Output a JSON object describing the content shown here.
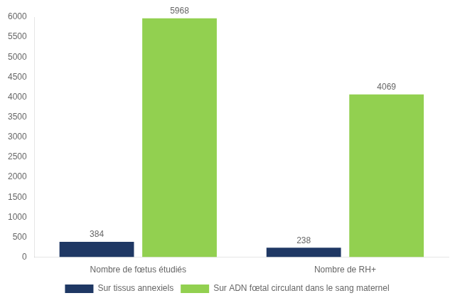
{
  "chart_data": {
    "type": "bar",
    "categories": [
      "Nombre de fœtus étudiés",
      "Nombre de RH+"
    ],
    "series": [
      {
        "name": "Sur tissus annexiels",
        "color": "#1F3864",
        "values": [
          384,
          238
        ]
      },
      {
        "name": "Sur ADN fœtal circulant dans le sang maternel",
        "color": "#92D050",
        "values": [
          5968,
          4069
        ]
      }
    ],
    "ylim": [
      0,
      6000
    ],
    "yticks": [
      0,
      500,
      1000,
      1500,
      2000,
      2500,
      3000,
      3500,
      4000,
      4500,
      5000,
      5500,
      6000
    ],
    "grid": false,
    "legend": "bottom",
    "data_labels": true
  }
}
